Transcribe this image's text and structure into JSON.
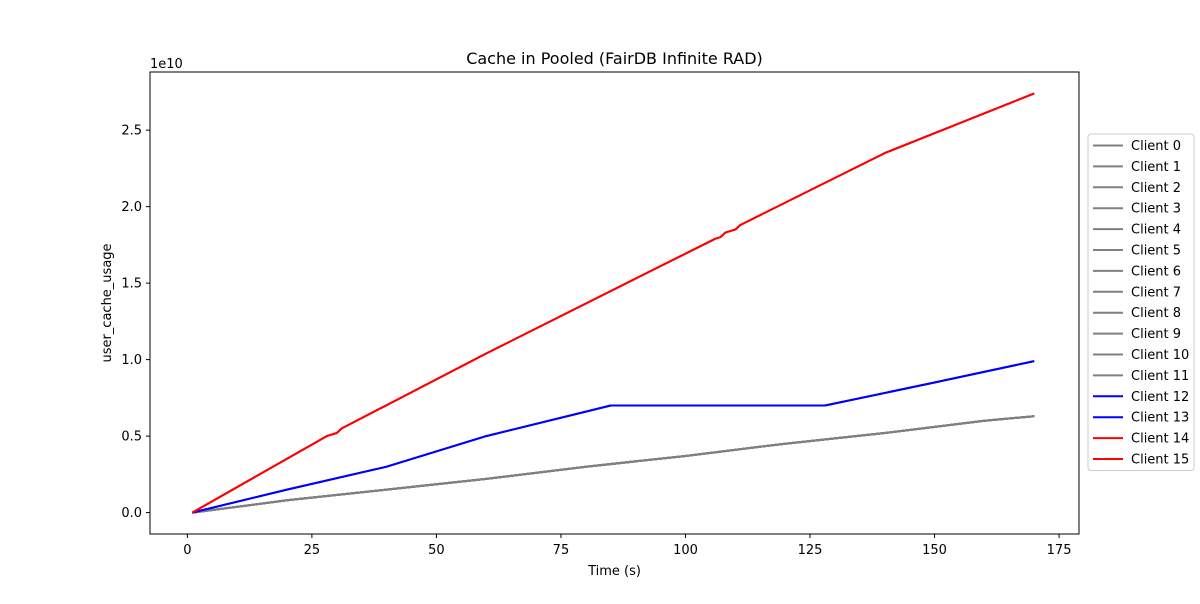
{
  "chart_data": {
    "type": "line",
    "title": "Cache in  Pooled (FairDB Infinite RAD)",
    "xlabel": "Time (s)",
    "ylabel": "user_cache_usage",
    "y_offset_label": "1e10",
    "y_scale": 10000000000,
    "xlim": [
      -7.5,
      179
    ],
    "ylim": [
      -0.14,
      2.88
    ],
    "xticks": [
      0,
      25,
      50,
      75,
      100,
      125,
      150,
      175
    ],
    "xtick_labels": [
      "0",
      "25",
      "50",
      "75",
      "100",
      "125",
      "150",
      "175"
    ],
    "yticks": [
      0.0,
      0.5,
      1.0,
      1.5,
      2.0,
      2.5
    ],
    "ytick_labels": [
      "0.0",
      "0.5",
      "1.0",
      "1.5",
      "2.0",
      "2.5"
    ],
    "grid": false,
    "legend_position": "outside-right",
    "series": [
      {
        "name": "Client 0",
        "color": "#808080",
        "x": [
          1,
          20,
          40,
          60,
          80,
          100,
          120,
          140,
          160,
          170
        ],
        "y": [
          0.0,
          0.08,
          0.15,
          0.22,
          0.3,
          0.37,
          0.45,
          0.52,
          0.6,
          0.63
        ]
      },
      {
        "name": "Client 1",
        "color": "#808080",
        "x": [
          1,
          20,
          40,
          60,
          80,
          100,
          120,
          140,
          160,
          170
        ],
        "y": [
          0.0,
          0.08,
          0.15,
          0.22,
          0.3,
          0.37,
          0.45,
          0.52,
          0.6,
          0.63
        ]
      },
      {
        "name": "Client 2",
        "color": "#808080",
        "x": [
          1,
          20,
          40,
          60,
          80,
          100,
          120,
          140,
          160,
          170
        ],
        "y": [
          0.0,
          0.08,
          0.15,
          0.22,
          0.3,
          0.37,
          0.45,
          0.52,
          0.6,
          0.63
        ]
      },
      {
        "name": "Client 3",
        "color": "#808080",
        "x": [
          1,
          20,
          40,
          60,
          80,
          100,
          120,
          140,
          160,
          170
        ],
        "y": [
          0.0,
          0.08,
          0.15,
          0.22,
          0.3,
          0.37,
          0.45,
          0.52,
          0.6,
          0.63
        ]
      },
      {
        "name": "Client 4",
        "color": "#808080",
        "x": [
          1,
          20,
          40,
          60,
          80,
          100,
          120,
          140,
          160,
          170
        ],
        "y": [
          0.0,
          0.08,
          0.15,
          0.22,
          0.3,
          0.37,
          0.45,
          0.52,
          0.6,
          0.63
        ]
      },
      {
        "name": "Client 5",
        "color": "#808080",
        "x": [
          1,
          20,
          40,
          60,
          80,
          100,
          120,
          140,
          160,
          170
        ],
        "y": [
          0.0,
          0.08,
          0.15,
          0.22,
          0.3,
          0.37,
          0.45,
          0.52,
          0.6,
          0.63
        ]
      },
      {
        "name": "Client 6",
        "color": "#808080",
        "x": [
          1,
          20,
          40,
          60,
          80,
          100,
          120,
          140,
          160,
          170
        ],
        "y": [
          0.0,
          0.08,
          0.15,
          0.22,
          0.3,
          0.37,
          0.45,
          0.52,
          0.6,
          0.63
        ]
      },
      {
        "name": "Client 7",
        "color": "#808080",
        "x": [
          1,
          20,
          40,
          60,
          80,
          100,
          120,
          140,
          160,
          170
        ],
        "y": [
          0.0,
          0.08,
          0.15,
          0.22,
          0.3,
          0.37,
          0.45,
          0.52,
          0.6,
          0.63
        ]
      },
      {
        "name": "Client 8",
        "color": "#808080",
        "x": [
          1,
          20,
          40,
          60,
          80,
          100,
          120,
          140,
          160,
          170
        ],
        "y": [
          0.0,
          0.08,
          0.15,
          0.22,
          0.3,
          0.37,
          0.45,
          0.52,
          0.6,
          0.63
        ]
      },
      {
        "name": "Client 9",
        "color": "#808080",
        "x": [
          1,
          20,
          40,
          60,
          80,
          100,
          120,
          140,
          160,
          170
        ],
        "y": [
          0.0,
          0.08,
          0.15,
          0.22,
          0.3,
          0.37,
          0.45,
          0.52,
          0.6,
          0.63
        ]
      },
      {
        "name": "Client 10",
        "color": "#808080",
        "x": [
          1,
          20,
          40,
          60,
          80,
          100,
          120,
          140,
          160,
          170
        ],
        "y": [
          0.0,
          0.08,
          0.15,
          0.22,
          0.3,
          0.37,
          0.45,
          0.52,
          0.6,
          0.63
        ]
      },
      {
        "name": "Client 11",
        "color": "#808080",
        "x": [
          1,
          20,
          40,
          60,
          80,
          100,
          120,
          140,
          160,
          170
        ],
        "y": [
          0.0,
          0.08,
          0.15,
          0.22,
          0.3,
          0.37,
          0.45,
          0.52,
          0.6,
          0.63
        ]
      },
      {
        "name": "Client 12",
        "color": "#0000ff",
        "x": [
          1,
          20,
          40,
          60,
          85,
          100,
          110,
          128,
          150,
          170
        ],
        "y": [
          0.0,
          0.15,
          0.3,
          0.5,
          0.7,
          0.7,
          0.7,
          0.7,
          0.85,
          0.99
        ]
      },
      {
        "name": "Client 13",
        "color": "#0000ff",
        "x": [
          1,
          20,
          40,
          60,
          85,
          100,
          110,
          128,
          150,
          170
        ],
        "y": [
          0.0,
          0.15,
          0.3,
          0.5,
          0.7,
          0.7,
          0.7,
          0.7,
          0.85,
          0.99
        ]
      },
      {
        "name": "Client 14",
        "color": "#ff0000",
        "x": [
          1,
          28,
          30,
          31,
          60,
          90,
          106,
          107,
          108,
          110,
          111,
          140,
          170
        ],
        "y": [
          0.0,
          0.5,
          0.52,
          0.55,
          1.04,
          1.53,
          1.79,
          1.8,
          1.83,
          1.85,
          1.88,
          2.35,
          2.74
        ]
      },
      {
        "name": "Client 15",
        "color": "#ff0000",
        "x": [
          1,
          28,
          30,
          31,
          60,
          90,
          106,
          107,
          108,
          110,
          111,
          140,
          170
        ],
        "y": [
          0.0,
          0.5,
          0.52,
          0.55,
          1.04,
          1.53,
          1.79,
          1.8,
          1.83,
          1.85,
          1.88,
          2.35,
          2.74
        ]
      }
    ]
  }
}
